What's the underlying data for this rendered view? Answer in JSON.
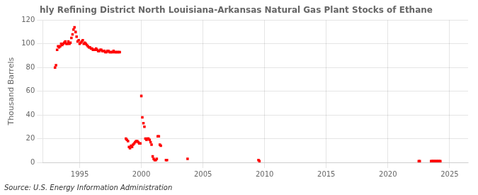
{
  "chart_data": {
    "type": "scatter",
    "title": "hly Refining District North Louisiana-Arkansas Natural Gas Plant Stocks of Ethane",
    "ylabel": "Thousand Barrels",
    "annotations": [
      "Source: U.S. Energy Information Administration"
    ],
    "color": "#ff0000",
    "marker": "square",
    "grid": true,
    "xlim": [
      1992.0,
      2026.5
    ],
    "ylim": [
      0,
      120
    ],
    "xticks": [
      1995,
      2000,
      2005,
      2010,
      2015,
      2020,
      2025
    ],
    "yticks": [
      0,
      20,
      40,
      60,
      80,
      100,
      120
    ],
    "x": [
      1993.0,
      1993.08,
      1993.17,
      1993.25,
      1993.33,
      1993.42,
      1993.5,
      1993.58,
      1993.67,
      1993.75,
      1993.83,
      1993.92,
      1994.0,
      1994.08,
      1994.17,
      1994.25,
      1994.33,
      1994.42,
      1994.5,
      1994.58,
      1994.67,
      1994.75,
      1994.83,
      1994.92,
      1995.0,
      1995.08,
      1995.17,
      1995.25,
      1995.33,
      1995.42,
      1995.5,
      1995.58,
      1995.67,
      1995.75,
      1995.83,
      1995.92,
      1996.0,
      1996.08,
      1996.17,
      1996.25,
      1996.33,
      1996.42,
      1996.5,
      1996.58,
      1996.67,
      1996.75,
      1996.83,
      1996.92,
      1997.0,
      1997.08,
      1997.17,
      1997.25,
      1997.33,
      1997.42,
      1997.5,
      1997.58,
      1997.67,
      1997.75,
      1997.83,
      1997.92,
      1998.0,
      1998.08,
      1998.17,
      1998.25,
      1998.75,
      1998.83,
      1998.92,
      1999.0,
      1999.08,
      1999.17,
      1999.25,
      1999.33,
      1999.42,
      1999.5,
      1999.58,
      1999.67,
      1999.75,
      1999.83,
      1999.92,
      2000.0,
      2000.08,
      2000.17,
      2000.25,
      2000.33,
      2000.42,
      2000.5,
      2000.58,
      2000.67,
      2000.75,
      2000.83,
      2000.92,
      2001.0,
      2001.08,
      2001.17,
      2001.25,
      2001.33,
      2001.42,
      2001.5,
      2001.58,
      2002.0,
      2002.08,
      2003.75,
      2009.5,
      2009.58,
      2022.5,
      2022.58,
      2023.5,
      2023.58,
      2023.67,
      2023.75,
      2023.83,
      2023.92,
      2024.0,
      2024.08,
      2024.17,
      2024.25
    ],
    "values": [
      80,
      82,
      95,
      98,
      97,
      98,
      100,
      99,
      100,
      101,
      102,
      100,
      100,
      102,
      100,
      101,
      105,
      108,
      112,
      114,
      110,
      106,
      102,
      103,
      100,
      101,
      102,
      103,
      100,
      101,
      100,
      99,
      98,
      97,
      97,
      96,
      96,
      95,
      95,
      95,
      96,
      95,
      94,
      94,
      95,
      95,
      94,
      94,
      94,
      93,
      93,
      94,
      94,
      93,
      93,
      93,
      93,
      94,
      93,
      93,
      93,
      93,
      93,
      93,
      20,
      19,
      18,
      13,
      12,
      14,
      13,
      15,
      16,
      17,
      18,
      18,
      17,
      16,
      16,
      56,
      38,
      33,
      30,
      20,
      19,
      20,
      20,
      19,
      17,
      15,
      5,
      3,
      2,
      2,
      3,
      22,
      22,
      15,
      14,
      2,
      2,
      3,
      2,
      1,
      1,
      1,
      1,
      1,
      1,
      1,
      1,
      1,
      1,
      1,
      1,
      1
    ]
  }
}
